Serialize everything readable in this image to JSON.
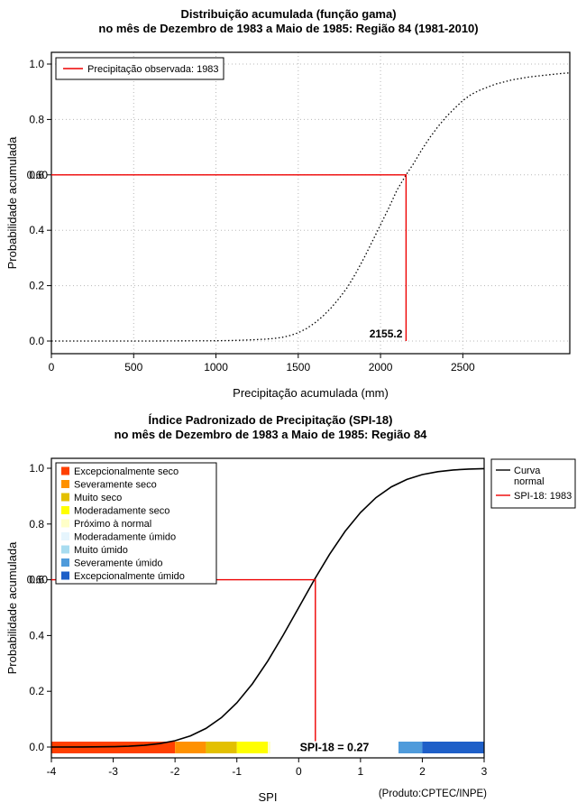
{
  "credit": "(Produto:CPTEC/INPE)",
  "chart_data": [
    {
      "type": "line",
      "title": "Distribuição acumulada (função gama)",
      "subtitle": "no mês de Dezembro de 1983 a Maio de 1985: Região 84 (1981-2010)",
      "xlabel": "Precipitação acumulada (mm)",
      "ylabel": "Probabilidade acumulada",
      "xlim": [
        0,
        3150
      ],
      "ylim": [
        0,
        1
      ],
      "grid": true,
      "xticks": {
        "values": [
          0,
          500,
          1000,
          1500,
          2000,
          2500
        ],
        "labels": [
          "0",
          "500",
          "1000",
          "1500",
          "2000",
          "2500"
        ]
      },
      "yticks": {
        "values": [
          0,
          0.2,
          0.4,
          0.6,
          0.8,
          1
        ],
        "labels": [
          "0.0",
          "0.2",
          "0.4",
          "0.6",
          "0.8",
          "1.0"
        ]
      },
      "curve": {
        "name": "Distribuição gama acumulada",
        "color": "#000000",
        "style": "dotted",
        "x": [
          0,
          200,
          400,
          600,
          800,
          1000,
          1100,
          1200,
          1300,
          1350,
          1400,
          1450,
          1500,
          1550,
          1600,
          1650,
          1700,
          1750,
          1800,
          1850,
          1900,
          1950,
          2000,
          2050,
          2100,
          2155.2,
          2200,
          2250,
          2300,
          2350,
          2400,
          2450,
          2500,
          2550,
          2600,
          2700,
          2800,
          2900,
          3000,
          3100,
          3150
        ],
        "y": [
          0,
          0,
          0,
          0,
          0.0005,
          0.001,
          0.002,
          0.004,
          0.007,
          0.009,
          0.013,
          0.02,
          0.03,
          0.045,
          0.065,
          0.09,
          0.12,
          0.155,
          0.195,
          0.245,
          0.3,
          0.36,
          0.42,
          0.48,
          0.545,
          0.6,
          0.64,
          0.69,
          0.735,
          0.775,
          0.81,
          0.84,
          0.868,
          0.89,
          0.905,
          0.928,
          0.943,
          0.953,
          0.96,
          0.966,
          0.968
        ]
      },
      "marker": {
        "x": 2155.2,
        "y": 0.6,
        "color": "#EE0000",
        "x_label": "2155.2",
        "y_label": "0.60",
        "x_label_placement": "above-axis"
      },
      "legend": {
        "position": "top-left",
        "items": [
          {
            "label": "Precipitação observada: 1983",
            "color": "#EE0000"
          }
        ]
      }
    },
    {
      "type": "line",
      "title": "Índice Padronizado de Precipitação (SPI-18)",
      "subtitle": "no mês de Dezembro de 1983 a Maio de 1985: Região 84",
      "xlabel": "SPI",
      "ylabel": "Probabilidade acumulada",
      "xlim": [
        -4,
        3
      ],
      "ylim": [
        0,
        1
      ],
      "grid": false,
      "xticks": {
        "values": [
          -4,
          -3,
          -2,
          -1,
          0,
          1,
          2,
          3
        ],
        "labels": [
          "-4",
          "-3",
          "-2",
          "-1",
          "0",
          "1",
          "2",
          "3"
        ]
      },
      "yticks": {
        "values": [
          0,
          0.2,
          0.4,
          0.6,
          0.8,
          1
        ],
        "labels": [
          "0.0",
          "0.2",
          "0.4",
          "0.6",
          "0.8",
          "1.0"
        ]
      },
      "curve": {
        "name": "Curva normal",
        "color": "#000000",
        "style": "solid",
        "x": [
          -4,
          -3.5,
          -3,
          -2.75,
          -2.5,
          -2.25,
          -2,
          -1.75,
          -1.5,
          -1.25,
          -1,
          -0.75,
          -0.5,
          -0.25,
          0,
          0.25,
          0.27,
          0.5,
          0.75,
          1,
          1.25,
          1.5,
          1.75,
          2,
          2.25,
          2.5,
          2.75,
          3
        ],
        "y": [
          0.0,
          0.0002,
          0.0013,
          0.003,
          0.0062,
          0.0122,
          0.0228,
          0.0401,
          0.0668,
          0.1056,
          0.1587,
          0.2266,
          0.3085,
          0.4013,
          0.5,
          0.5987,
          0.6064,
          0.6915,
          0.7734,
          0.8413,
          0.8944,
          0.9332,
          0.9599,
          0.9772,
          0.9878,
          0.9938,
          0.997,
          0.9987
        ]
      },
      "marker": {
        "x": 0.27,
        "y": 0.6,
        "color": "#EE0000",
        "x_label": "SPI-18 = 0.27",
        "y_label": "0.60",
        "x_label_placement": "colorbar"
      },
      "category_legend": {
        "position": "top-left",
        "items": [
          {
            "label": "Excepcionalmente seco",
            "color": "#FF4000",
            "range": [
              -4,
              -2
            ]
          },
          {
            "label": "Severamente seco",
            "color": "#FF9100",
            "range": [
              -2,
              -1.5
            ]
          },
          {
            "label": "Muito seco",
            "color": "#E3C000",
            "range": [
              -1.5,
              -1
            ]
          },
          {
            "label": "Moderadamente seco",
            "color": "#FFFF00",
            "range": [
              -1,
              -0.5
            ]
          },
          {
            "label": "Próximo à normal",
            "color": "#FFFFC8",
            "range": [
              -0.5,
              0.5
            ]
          },
          {
            "label": "Moderadamente úmido",
            "color": "#E6F5FD",
            "range": [
              0.5,
              1
            ]
          },
          {
            "label": "Muito úmido",
            "color": "#A8DCF0",
            "range": [
              1,
              1.5
            ]
          },
          {
            "label": "Severamente úmido",
            "color": "#4F9BDB",
            "range": [
              1.5,
              2
            ]
          },
          {
            "label": "Excepcionalmente úmido",
            "color": "#1E5FC8",
            "range": [
              2,
              3
            ]
          }
        ]
      },
      "line_legend": {
        "position": "top-right",
        "items": [
          {
            "label_lines": [
              "Curva",
              "normal"
            ],
            "color": "#000000"
          },
          {
            "label_lines": [
              "SPI-18: 1983"
            ],
            "color": "#EE0000"
          }
        ]
      }
    }
  ]
}
